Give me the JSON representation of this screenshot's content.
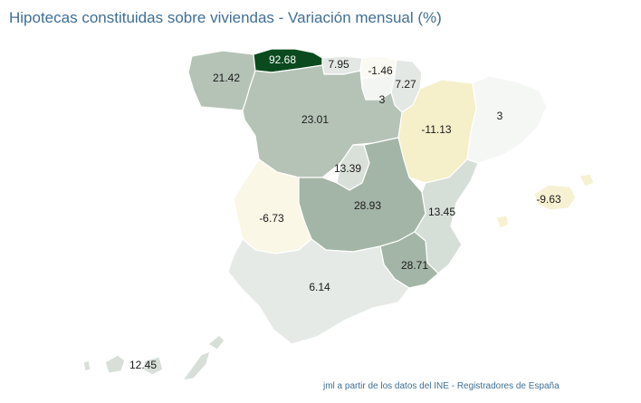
{
  "title": "Hipotecas constituidas sobre viviendas - Variación mensual (%)",
  "credit": "jml a partir de los datos del INE - Registradores de España",
  "regions": [
    {
      "key": "galicia",
      "value": "21.42",
      "color": "#b5c3b7"
    },
    {
      "key": "asturias",
      "value": "92.68",
      "color": "#0b4a1e"
    },
    {
      "key": "cantabria",
      "value": "7.95",
      "color": "#e4e8e4"
    },
    {
      "key": "paisvasco",
      "value": "-1.46",
      "color": "#fbfaf2"
    },
    {
      "key": "navarra",
      "value": "7.27",
      "color": "#e4e8e4"
    },
    {
      "key": "larioja",
      "value": "3",
      "color": "#f3f5f3"
    },
    {
      "key": "aragon",
      "value": "-11.13",
      "color": "#f5efca"
    },
    {
      "key": "cataluna",
      "value": "3",
      "color": "#f5f7f5"
    },
    {
      "key": "castillaleon",
      "value": "23.01",
      "color": "#b4c3b6"
    },
    {
      "key": "madrid",
      "value": "13.39",
      "color": "#d9e0da"
    },
    {
      "key": "castillamancha",
      "value": "28.93",
      "color": "#a3b5a6"
    },
    {
      "key": "extremadura",
      "value": "-6.73",
      "color": "#faf7e6"
    },
    {
      "key": "valencia",
      "value": "13.45",
      "color": "#d6ded8"
    },
    {
      "key": "murcia",
      "value": "28.71",
      "color": "#a3b5a6"
    },
    {
      "key": "andalucia",
      "value": "6.14",
      "color": "#e6eae6"
    },
    {
      "key": "baleares",
      "value": "-9.63",
      "color": "#f6f1d2"
    },
    {
      "key": "canarias",
      "value": "12.45",
      "color": "#d8dfd9"
    }
  ]
}
